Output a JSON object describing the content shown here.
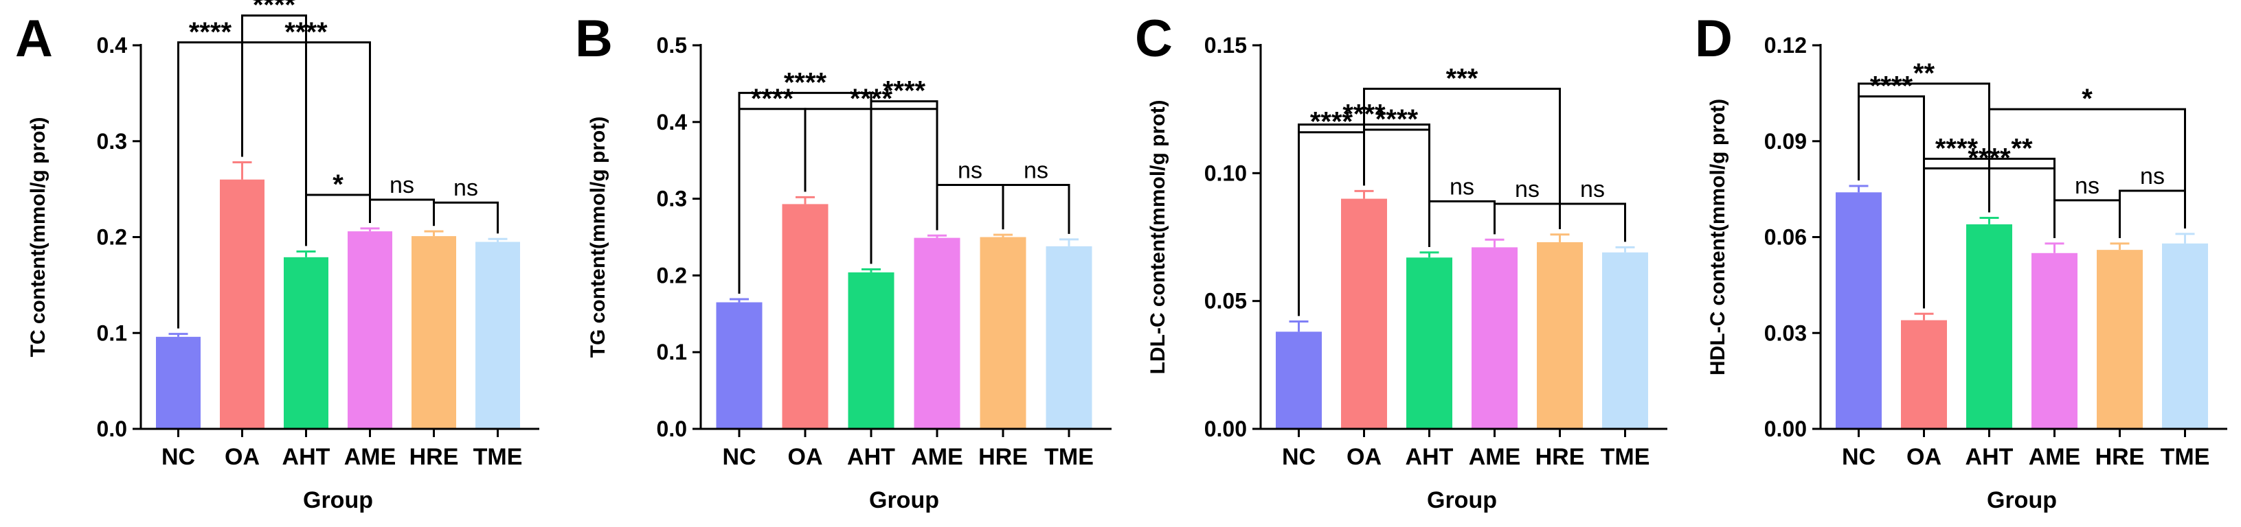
{
  "chart_data": [
    {
      "type": "bar",
      "panel": "A",
      "xlabel": "Group",
      "ylabel": "TC content(mmol/g prot)",
      "ylim": [
        0,
        0.4
      ],
      "yticks": [
        "0.0",
        "0.1",
        "0.2",
        "0.3",
        "0.4"
      ],
      "categories": [
        "NC",
        "OA",
        "AHT",
        "AME",
        "HRE",
        "TME"
      ],
      "colors": [
        "#7f7ff6",
        "#fa7f80",
        "#19d97d",
        "#ee82ee",
        "#fcbd78",
        "#bfe0fb"
      ],
      "values": [
        0.096,
        0.26,
        0.179,
        0.206,
        0.201,
        0.195
      ],
      "errors": [
        0.003,
        0.018,
        0.006,
        0.003,
        0.005,
        0.003
      ],
      "annotations": [
        {
          "from": 0,
          "to": 1,
          "level": 0.125,
          "label": "****"
        },
        {
          "from": 1,
          "to": 2,
          "level": 0.153,
          "label": "****"
        },
        {
          "from": 1,
          "to": 3,
          "level": 0.125,
          "label": "****"
        },
        {
          "from": 2,
          "to": 3,
          "level": 0.035,
          "label": "*"
        },
        {
          "from": 3,
          "to": 4,
          "level": 0.03,
          "label": "ns"
        },
        {
          "from": 4,
          "to": 5,
          "level": 0.03,
          "label": "ns"
        }
      ]
    },
    {
      "type": "bar",
      "panel": "B",
      "xlabel": "Group",
      "ylabel": "TG content(mmol/g prot)",
      "ylim": [
        0,
        0.5
      ],
      "yticks": [
        "0.0",
        "0.1",
        "0.2",
        "0.3",
        "0.4",
        "0.5"
      ],
      "categories": [
        "NC",
        "OA",
        "AHT",
        "AME",
        "HRE",
        "TME"
      ],
      "colors": [
        "#7f7ff6",
        "#fa7f80",
        "#19d97d",
        "#ee82ee",
        "#fcbd78",
        "#bfe0fb"
      ],
      "values": [
        0.165,
        0.293,
        0.204,
        0.249,
        0.25,
        0.238
      ],
      "errors": [
        0.004,
        0.009,
        0.004,
        0.003,
        0.003,
        0.009
      ],
      "annotations": [
        {
          "from": 0,
          "to": 1,
          "level": 0.115,
          "label": "****"
        },
        {
          "from": 1,
          "to": 3,
          "level": 0.115,
          "label": "****"
        },
        {
          "from": 0,
          "to": 2,
          "level": 0.23,
          "label": "****"
        },
        {
          "from": 2,
          "to": 3,
          "level": 0.175,
          "label": "****"
        },
        {
          "from": 3,
          "to": 4,
          "level": 0.065,
          "label": "ns"
        },
        {
          "from": 4,
          "to": 5,
          "level": 0.065,
          "label": "ns"
        }
      ]
    },
    {
      "type": "bar",
      "panel": "C",
      "xlabel": "Group",
      "ylabel": "LDL-C content(mmol/g prot)",
      "ylim": [
        0,
        0.15
      ],
      "yticks": [
        "0.00",
        "0.05",
        "0.10",
        "0.15"
      ],
      "categories": [
        "NC",
        "OA",
        "AHT",
        "AME",
        "HRE",
        "TME"
      ],
      "colors": [
        "#7f7ff6",
        "#fa7f80",
        "#19d97d",
        "#ee82ee",
        "#fcbd78",
        "#bfe0fb"
      ],
      "values": [
        0.038,
        0.09,
        0.067,
        0.071,
        0.073,
        0.069
      ],
      "errors": [
        0.004,
        0.003,
        0.002,
        0.003,
        0.003,
        0.002
      ],
      "annotations": [
        {
          "from": 0,
          "to": 1,
          "level": 0.023,
          "label": "****"
        },
        {
          "from": 1,
          "to": 2,
          "level": 0.024,
          "label": "****"
        },
        {
          "from": 0,
          "to": 2,
          "level": 0.05,
          "label": "****"
        },
        {
          "from": 1,
          "to": 4,
          "level": 0.04,
          "label": "***"
        },
        {
          "from": 2,
          "to": 3,
          "level": 0.015,
          "label": "ns"
        },
        {
          "from": 3,
          "to": 4,
          "level": 0.012,
          "label": "ns"
        },
        {
          "from": 4,
          "to": 5,
          "level": 0.012,
          "label": "ns"
        }
      ]
    },
    {
      "type": "bar",
      "panel": "D",
      "xlabel": "Group",
      "ylabel": "HDL-C content(mmol/g prot)",
      "ylim": [
        0,
        0.12
      ],
      "yticks": [
        "0.00",
        "0.03",
        "0.06",
        "0.09",
        "0.12"
      ],
      "categories": [
        "NC",
        "OA",
        "AHT",
        "AME",
        "HRE",
        "TME"
      ],
      "colors": [
        "#7f7ff6",
        "#fa7f80",
        "#19d97d",
        "#ee82ee",
        "#fcbd78",
        "#bfe0fb"
      ],
      "values": [
        0.074,
        0.034,
        0.064,
        0.055,
        0.056,
        0.058
      ],
      "errors": [
        0.002,
        0.002,
        0.002,
        0.003,
        0.002,
        0.003
      ],
      "annotations": [
        {
          "from": 0,
          "to": 1,
          "level": 0.028,
          "label": "****"
        },
        {
          "from": 1,
          "to": 2,
          "level": 0.0185,
          "label": "****"
        },
        {
          "from": 2,
          "to": 3,
          "level": 0.0185,
          "label": "**"
        },
        {
          "from": 1,
          "to": 3,
          "level": 0.0235,
          "label": "****"
        },
        {
          "from": 3,
          "to": 4,
          "level": 0.0135,
          "label": "ns"
        },
        {
          "from": 4,
          "to": 5,
          "level": 0.0135,
          "label": "ns"
        },
        {
          "from": 0,
          "to": 2,
          "level": 0.032,
          "label": "**"
        },
        {
          "from": 2,
          "to": 5,
          "level": 0.034,
          "label": "*"
        }
      ]
    }
  ]
}
